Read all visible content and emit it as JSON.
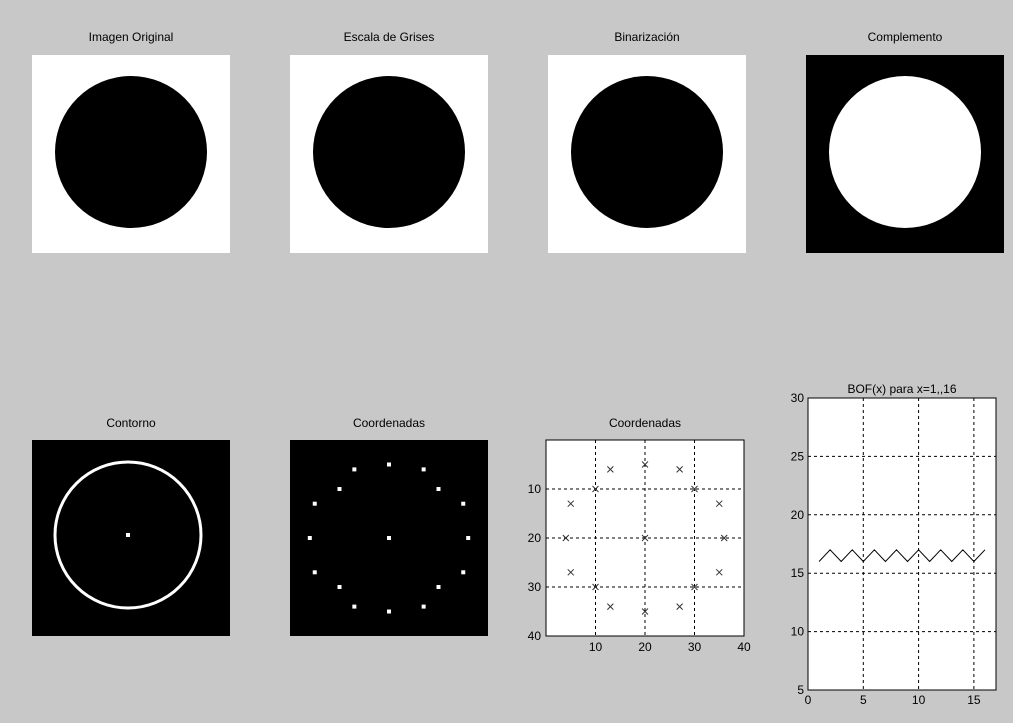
{
  "titles": {
    "original": "Imagen Original",
    "gris": "Escala de Grises",
    "bin": "Binarización",
    "comp": "Complemento",
    "contorno": "Contorno",
    "coords_img": "Coordenadas",
    "coords_plot": "Coordenadas",
    "bof": "BOF(x) para x=1,,16"
  },
  "colors": {
    "figure_bg": "#c8c8c8",
    "white": "#ffffff",
    "black": "#000000",
    "grid": "#000000"
  },
  "chart_data": [
    {
      "type": "scatter",
      "title": "Coordenadas",
      "marker": "x",
      "xlim": [
        0,
        40
      ],
      "ylim": [
        40,
        0
      ],
      "y_reversed": true,
      "xticks": [
        10,
        20,
        30,
        40
      ],
      "yticks": [
        10,
        20,
        30,
        40
      ],
      "grid": true,
      "points": [
        [
          20,
          5
        ],
        [
          27,
          6
        ],
        [
          30,
          10
        ],
        [
          35,
          13
        ],
        [
          36,
          20
        ],
        [
          35,
          27
        ],
        [
          30,
          30
        ],
        [
          27,
          34
        ],
        [
          20,
          35
        ],
        [
          13,
          34
        ],
        [
          10,
          30
        ],
        [
          5,
          27
        ],
        [
          4,
          20
        ],
        [
          5,
          13
        ],
        [
          10,
          10
        ],
        [
          13,
          6
        ],
        [
          20,
          20
        ]
      ]
    },
    {
      "type": "line",
      "title": "BOF(x) para x=1,,16",
      "xlim": [
        0,
        17
      ],
      "ylim": [
        5,
        30
      ],
      "xticks": [
        0,
        5,
        10,
        15
      ],
      "yticks": [
        5,
        10,
        15,
        20,
        25,
        30
      ],
      "grid": true,
      "x": [
        1,
        2,
        3,
        4,
        5,
        6,
        7,
        8,
        9,
        10,
        11,
        12,
        13,
        14,
        15,
        16
      ],
      "y": [
        16,
        17,
        16,
        17,
        16,
        17,
        16,
        17,
        16,
        17,
        16,
        17,
        16,
        17,
        16,
        17
      ]
    }
  ]
}
